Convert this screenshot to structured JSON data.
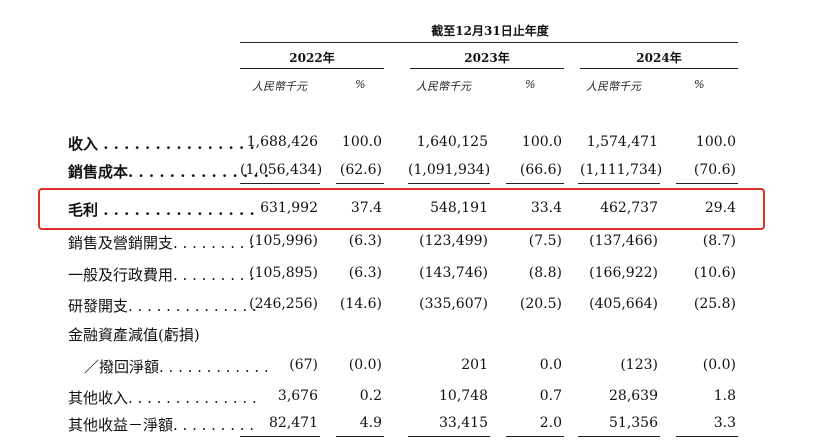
{
  "header": {
    "period": "截至12月31日止年度",
    "years": [
      "2022年",
      "2023年",
      "2024年"
    ],
    "unit": "人民幣千元",
    "pct": "%"
  },
  "rows": [
    {
      "label": "收入 . . . . . . . . . . . . . . .",
      "v": [
        "1,688,426",
        "100.0",
        "1,640,125",
        "100.0",
        "1,574,471",
        "100.0"
      ]
    },
    {
      "label": "銷售成本. . . . . . . . . . . . . .",
      "v": [
        "(1,056,434)",
        "(62.6)",
        "(1,091,934)",
        "(66.6)",
        "(1,111,734)",
        "(70.6)"
      ]
    },
    {
      "label": "毛利 . . . . . . . . . . . . . . .",
      "v": [
        "631,992",
        "37.4",
        "548,191",
        "33.4",
        "462,737",
        "29.4"
      ]
    },
    {
      "label": "銷售及營銷開支. . . . . . . . .",
      "v": [
        "(105,996)",
        "(6.3)",
        "(123,499)",
        "(7.5)",
        "(137,466)",
        "(8.7)"
      ]
    },
    {
      "label": "一般及行政費用. . . . . . . . .",
      "v": [
        "(105,895)",
        "(6.3)",
        "(143,746)",
        "(8.8)",
        "(166,922)",
        "(10.6)"
      ]
    },
    {
      "label": "研發開支. . . . . . . . . . . . . .",
      "v": [
        "(246,256)",
        "(14.6)",
        "(335,607)",
        "(20.5)",
        "(405,664)",
        "(25.8)"
      ]
    },
    {
      "label": "金融資產減值(虧損)",
      "v": [
        "",
        "",
        "",
        "",
        "",
        ""
      ]
    },
    {
      "label": "／撥回淨額. . . . . . . . . . . .",
      "v": [
        "(67)",
        "(0.0)",
        "201",
        "0.0",
        "(123)",
        "(0.0)"
      ]
    },
    {
      "label": "其他收入. . . . . . . . . . . . . .",
      "v": [
        "3,676",
        "0.2",
        "10,748",
        "0.7",
        "28,639",
        "1.8"
      ]
    },
    {
      "label": "其他收益－淨額. . . . . . . . .",
      "v": [
        "82,471",
        "4.9",
        "33,415",
        "2.0",
        "51,356",
        "3.3"
      ]
    }
  ]
}
